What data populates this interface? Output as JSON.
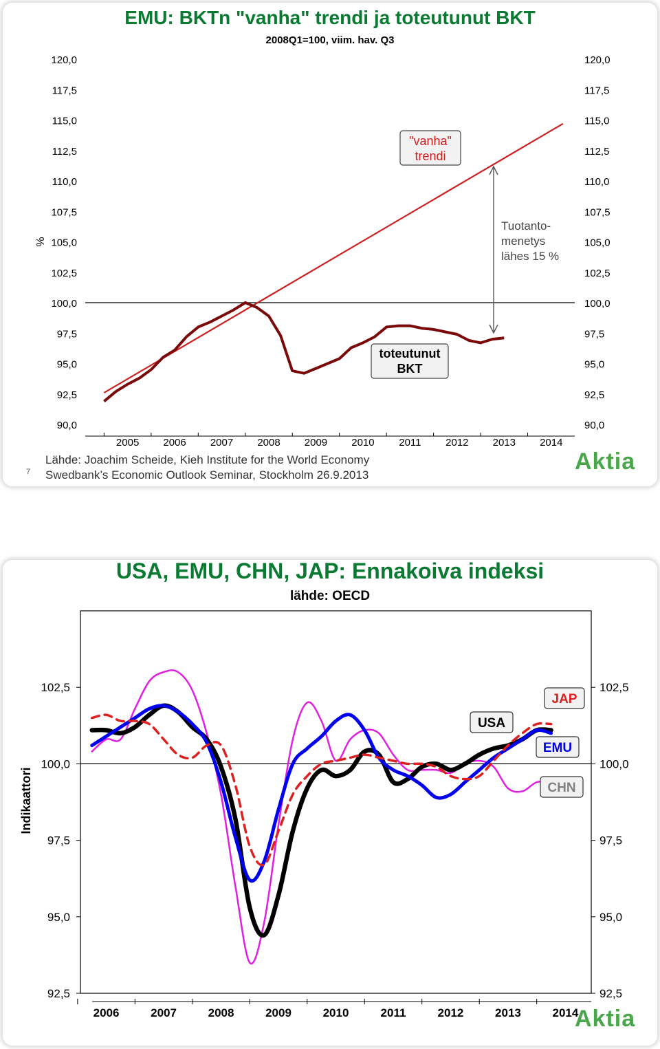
{
  "slides": [
    {
      "slide_number": "7",
      "title": "EMU: BKTn \"vanha\" trendi ja toteutunut BKT",
      "subtitle": "2008Q1=100, viim. hav. Q3",
      "source_line1": "Lähde: Joachim Scheide, Kieh Institute for the World Economy",
      "source_line2": "Swedbank’s Economic Outlook Seminar, Stockholm 26.9.2013",
      "logo": "Aktia",
      "annotations": {
        "trend_label": "\"vanha\" trendi",
        "gdp_label": "toteutunut BKT",
        "loss_label": [
          "Tuotanto-",
          "menetys",
          "lähes 15 %"
        ]
      }
    },
    {
      "title": "USA, EMU, CHN, JAP: Ennakoiva indeksi",
      "subtitle": "lähde: OECD",
      "logo": "Aktia",
      "legend_labels": {
        "jap": "JAP",
        "usa": "USA",
        "emu": "EMU",
        "chn": "CHN"
      }
    }
  ],
  "colors": {
    "title_green": "#0a7a32",
    "trend": "#cc2020",
    "gdp": "#7a0a0a",
    "usa": "#000000",
    "emu": "#0000ee",
    "chn": "#e020e0",
    "jap": "#dd2020",
    "logo": "#4aa64a"
  },
  "chart_data": [
    {
      "type": "line",
      "title": "EMU: BKTn \"vanha\" trendi ja toteutunut BKT",
      "subtitle": "2008Q1=100, viim. hav. Q3",
      "ylabel": "%",
      "ylim": [
        90,
        120
      ],
      "xlim": [
        2004.6,
        2015.0
      ],
      "yticks": [
        "120,0",
        "117,5",
        "115,0",
        "112,5",
        "110,0",
        "107,5",
        "105,0",
        "102,5",
        "100,0",
        "97,5",
        "95,0",
        "92,5",
        "90,0"
      ],
      "ytick_values": [
        120,
        117.5,
        115,
        112.5,
        110,
        107.5,
        105,
        102.5,
        100,
        97.5,
        95,
        92.5,
        90
      ],
      "xticks": [
        "2005",
        "2006",
        "2007",
        "2008",
        "2009",
        "2010",
        "2011",
        "2012",
        "2013",
        "2014"
      ],
      "reference_line": 100,
      "series": [
        {
          "key": "trend",
          "x": [
            2005.0,
            2014.75
          ],
          "y": [
            92.6,
            114.7
          ]
        },
        {
          "key": "gdp",
          "x": [
            2005.0,
            2005.25,
            2005.5,
            2005.75,
            2006.0,
            2006.25,
            2006.5,
            2006.75,
            2007.0,
            2007.25,
            2007.5,
            2007.75,
            2008.0,
            2008.25,
            2008.5,
            2008.75,
            2009.0,
            2009.25,
            2009.5,
            2009.75,
            2010.0,
            2010.25,
            2010.5,
            2010.75,
            2011.0,
            2011.25,
            2011.5,
            2011.75,
            2012.0,
            2012.25,
            2012.5,
            2012.75,
            2013.0,
            2013.25,
            2013.5
          ],
          "y": [
            91.9,
            92.7,
            93.3,
            93.8,
            94.5,
            95.5,
            96.1,
            97.2,
            98.0,
            98.4,
            98.9,
            99.4,
            100.0,
            99.6,
            98.9,
            97.3,
            94.4,
            94.2,
            94.6,
            95.0,
            95.4,
            96.3,
            96.7,
            97.2,
            98.0,
            98.1,
            98.1,
            97.9,
            97.8,
            97.6,
            97.4,
            96.9,
            96.7,
            97.0,
            97.1
          ]
        }
      ]
    },
    {
      "type": "line",
      "title": "USA, EMU, CHN, JAP: Ennakoiva indeksi",
      "subtitle": "lähde: OECD",
      "ylabel": "Indikaattori",
      "ylim": [
        92.5,
        105.0
      ],
      "xlim": [
        2005.55,
        2014.45
      ],
      "yticks": [
        "102,5",
        "100,0",
        "97,5",
        "95,0",
        "92,5"
      ],
      "ytick_values": [
        102.5,
        100.0,
        97.5,
        95.0,
        92.5
      ],
      "xticks": [
        "2006",
        "2007",
        "2008",
        "2009",
        "2010",
        "2011",
        "2012",
        "2013",
        "2014"
      ],
      "reference_line": 100,
      "series": [
        {
          "key": "chn",
          "x": [
            2005.75,
            2006.0,
            2006.25,
            2006.5,
            2006.75,
            2007.0,
            2007.25,
            2007.5,
            2007.75,
            2008.0,
            2008.25,
            2008.5,
            2008.75,
            2009.0,
            2009.25,
            2009.5,
            2009.75,
            2010.0,
            2010.25,
            2010.5,
            2010.75,
            2011.0,
            2011.25,
            2011.5,
            2011.75,
            2012.0,
            2012.25,
            2012.5,
            2012.75,
            2013.0,
            2013.25,
            2013.5,
            2013.75
          ],
          "y": [
            100.4,
            100.8,
            100.8,
            101.8,
            102.7,
            103.0,
            103.0,
            102.4,
            101.0,
            99.0,
            96.0,
            93.5,
            94.8,
            98.0,
            100.8,
            102.0,
            101.4,
            100.1,
            100.8,
            101.1,
            101.0,
            100.3,
            99.8,
            99.8,
            99.8,
            99.7,
            100.0,
            100.1,
            99.9,
            99.2,
            99.1,
            99.4,
            99.4
          ]
        },
        {
          "key": "usa",
          "x": [
            2005.75,
            2006.0,
            2006.25,
            2006.5,
            2006.75,
            2007.0,
            2007.25,
            2007.5,
            2007.75,
            2008.0,
            2008.25,
            2008.5,
            2008.75,
            2009.0,
            2009.25,
            2009.5,
            2009.75,
            2010.0,
            2010.25,
            2010.5,
            2010.75,
            2011.0,
            2011.25,
            2011.5,
            2011.75,
            2012.0,
            2012.25,
            2012.5,
            2012.75,
            2013.0,
            2013.25,
            2013.5,
            2013.75
          ],
          "y": [
            101.1,
            101.1,
            101.0,
            101.2,
            101.6,
            101.9,
            101.7,
            101.2,
            100.8,
            99.9,
            98.2,
            95.3,
            94.4,
            95.7,
            97.8,
            99.2,
            99.8,
            99.6,
            99.8,
            100.4,
            100.3,
            99.4,
            99.5,
            99.9,
            100.0,
            99.8,
            100.0,
            100.3,
            100.5,
            100.6,
            100.8,
            101.1,
            101.1
          ]
        },
        {
          "key": "emu",
          "x": [
            2005.75,
            2006.0,
            2006.25,
            2006.5,
            2006.75,
            2007.0,
            2007.25,
            2007.5,
            2007.75,
            2008.0,
            2008.25,
            2008.5,
            2008.75,
            2009.0,
            2009.25,
            2009.5,
            2009.75,
            2010.0,
            2010.25,
            2010.5,
            2010.75,
            2011.0,
            2011.25,
            2011.5,
            2011.75,
            2012.0,
            2012.25,
            2012.5,
            2012.75,
            2013.0,
            2013.25,
            2013.5,
            2013.75
          ],
          "y": [
            100.6,
            100.9,
            101.2,
            101.5,
            101.8,
            101.9,
            101.7,
            101.3,
            100.7,
            99.4,
            97.6,
            96.2,
            96.8,
            98.5,
            100.0,
            100.5,
            100.9,
            101.4,
            101.6,
            101.1,
            100.2,
            99.8,
            99.6,
            99.3,
            98.9,
            99.0,
            99.4,
            99.8,
            100.2,
            100.5,
            100.8,
            101.1,
            101.0
          ]
        },
        {
          "key": "jap",
          "x": [
            2005.75,
            2006.0,
            2006.25,
            2006.5,
            2006.75,
            2007.0,
            2007.25,
            2007.5,
            2007.75,
            2008.0,
            2008.25,
            2008.5,
            2008.75,
            2009.0,
            2009.25,
            2009.5,
            2009.75,
            2010.0,
            2010.25,
            2010.5,
            2010.75,
            2011.0,
            2011.25,
            2011.5,
            2011.75,
            2012.0,
            2012.25,
            2012.5,
            2012.75,
            2013.0,
            2013.25,
            2013.5,
            2013.75
          ],
          "y": [
            101.5,
            101.6,
            101.4,
            101.4,
            101.3,
            100.8,
            100.3,
            100.2,
            100.6,
            100.6,
            99.3,
            97.3,
            96.7,
            97.8,
            99.0,
            99.6,
            100.0,
            100.1,
            100.2,
            100.3,
            100.2,
            100.1,
            100.0,
            100.0,
            99.9,
            99.6,
            99.5,
            99.6,
            100.1,
            100.6,
            101.0,
            101.3,
            101.3
          ]
        }
      ]
    }
  ]
}
